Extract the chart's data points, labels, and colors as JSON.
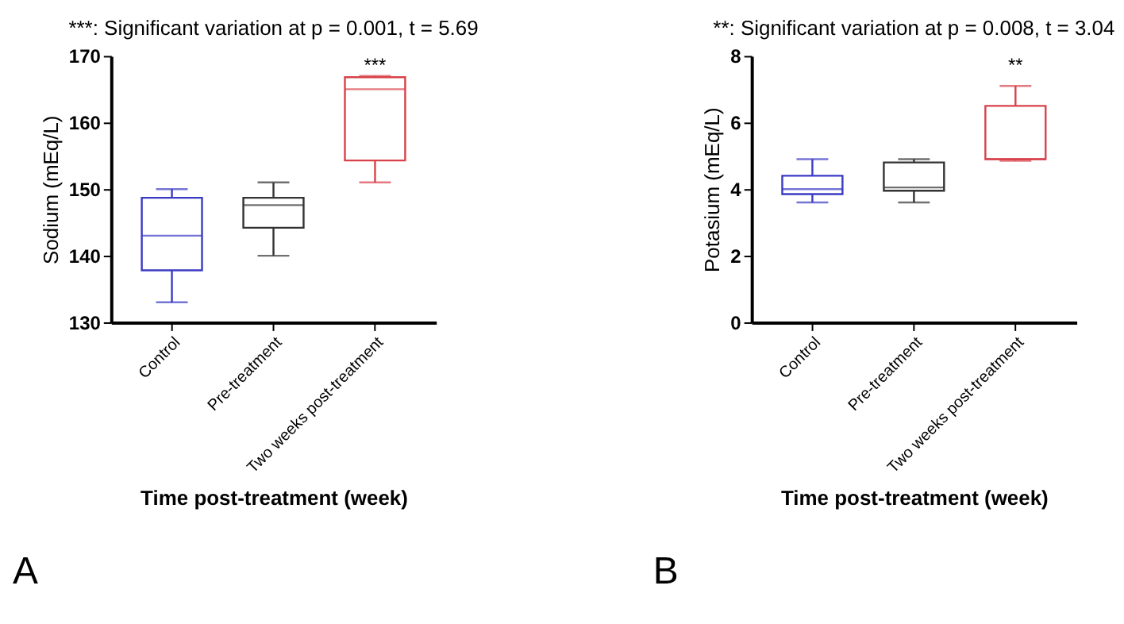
{
  "chart_data": [
    {
      "type": "box",
      "title": "***: Significant variation at p = 0.001, t = 5.69",
      "xlabel": "Time post-treatment (week)",
      "ylabel": "Sodium (mEq/L)",
      "categories": [
        "Control",
        "Pre-treatment",
        "Two weeks post-treatment"
      ],
      "colors": [
        "#3b3bc4",
        "#333333",
        "#d8424a"
      ],
      "boxes": [
        {
          "low": 133,
          "q1": 137.8,
          "median": 143,
          "q3": 148.7,
          "high": 150
        },
        {
          "low": 140,
          "q1": 144.2,
          "median": 147.6,
          "q3": 148.7,
          "high": 151
        },
        {
          "low": 151,
          "q1": 154.3,
          "median": 165,
          "q3": 166.8,
          "high": 167
        }
      ],
      "ylim": [
        130,
        170
      ],
      "yticks": [
        130,
        140,
        150,
        160,
        170
      ],
      "annotations": [
        "***",
        "A"
      ]
    },
    {
      "type": "box",
      "title": "**: Significant variation at p = 0.008, t = 3.04",
      "xlabel": "Time post-treatment (week)",
      "ylabel": "Potasium (mEq/L)",
      "categories": [
        "Control",
        "Pre-treatment",
        "Two weeks post-treatment"
      ],
      "colors": [
        "#3b3bc4",
        "#333333",
        "#d8424a"
      ],
      "boxes": [
        {
          "low": 3.6,
          "q1": 3.85,
          "median": 4.0,
          "q3": 4.4,
          "high": 4.9
        },
        {
          "low": 3.6,
          "q1": 3.95,
          "median": 4.05,
          "q3": 4.8,
          "high": 4.9
        },
        {
          "low": 4.85,
          "q1": 4.9,
          "median": 4.9,
          "q3": 6.5,
          "high": 7.1
        }
      ],
      "ylim": [
        0,
        8
      ],
      "yticks": [
        0,
        2,
        4,
        6,
        8
      ],
      "annotations": [
        "**",
        "B"
      ]
    }
  ]
}
